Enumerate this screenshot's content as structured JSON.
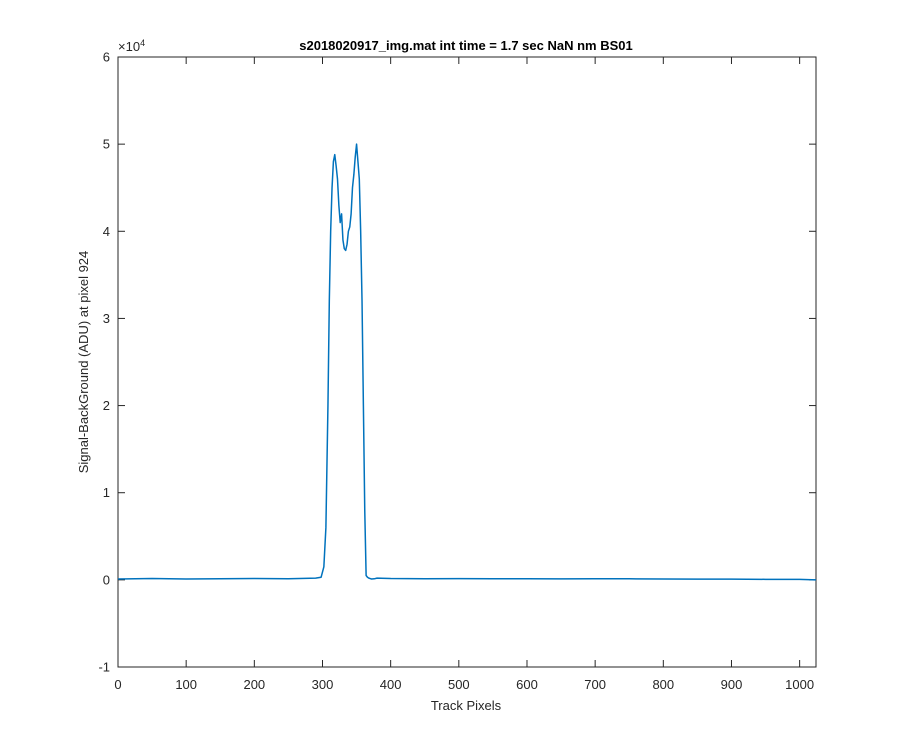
{
  "chart_data": {
    "type": "line",
    "title": "s2018020917_img.mat int time = 1.7 sec  NaN nm BS01",
    "xlabel": "Track Pixels",
    "ylabel": "Signal-BackGround (ADU) at pixel 924",
    "xlim": [
      0,
      1024
    ],
    "ylim": [
      -10000,
      60000
    ],
    "x_ticks": [
      0,
      100,
      200,
      300,
      400,
      500,
      600,
      700,
      800,
      900,
      1000
    ],
    "x_tick_labels": [
      "0",
      "100",
      "200",
      "300",
      "400",
      "500",
      "600",
      "700",
      "800",
      "900",
      "1000"
    ],
    "y_ticks": [
      -10000,
      0,
      10000,
      20000,
      30000,
      40000,
      50000,
      60000
    ],
    "y_tick_labels": [
      "-1",
      "0",
      "1",
      "2",
      "3",
      "4",
      "5",
      "6"
    ],
    "y_exponent_base": "×10",
    "y_exponent_power": "4",
    "grid": false,
    "line_color": "#0072BD",
    "series": [
      {
        "x": [
          0,
          50,
          100,
          150,
          200,
          250,
          290,
          298,
          302,
          305,
          308,
          310,
          312,
          314,
          316,
          318,
          320,
          322,
          324,
          326,
          328,
          330,
          332,
          334,
          336,
          338,
          340,
          342,
          344,
          346,
          348,
          350,
          352,
          354,
          356,
          358,
          360,
          362,
          364,
          366,
          368,
          370,
          372,
          376,
          380,
          400,
          450,
          500,
          550,
          600,
          650,
          700,
          750,
          800,
          850,
          900,
          950,
          1000,
          1024
        ],
        "y": [
          100,
          150,
          100,
          120,
          150,
          130,
          200,
          300,
          1500,
          6000,
          20000,
          32000,
          40000,
          45000,
          48000,
          48800,
          47500,
          46000,
          43000,
          41000,
          42000,
          39000,
          38000,
          37800,
          38500,
          40000,
          40500,
          42000,
          45000,
          46500,
          48500,
          50000,
          48000,
          46000,
          40000,
          32000,
          20000,
          8000,
          500,
          300,
          200,
          150,
          100,
          120,
          200,
          150,
          120,
          140,
          130,
          120,
          110,
          130,
          120,
          100,
          90,
          80,
          60,
          50,
          0
        ]
      }
    ]
  }
}
